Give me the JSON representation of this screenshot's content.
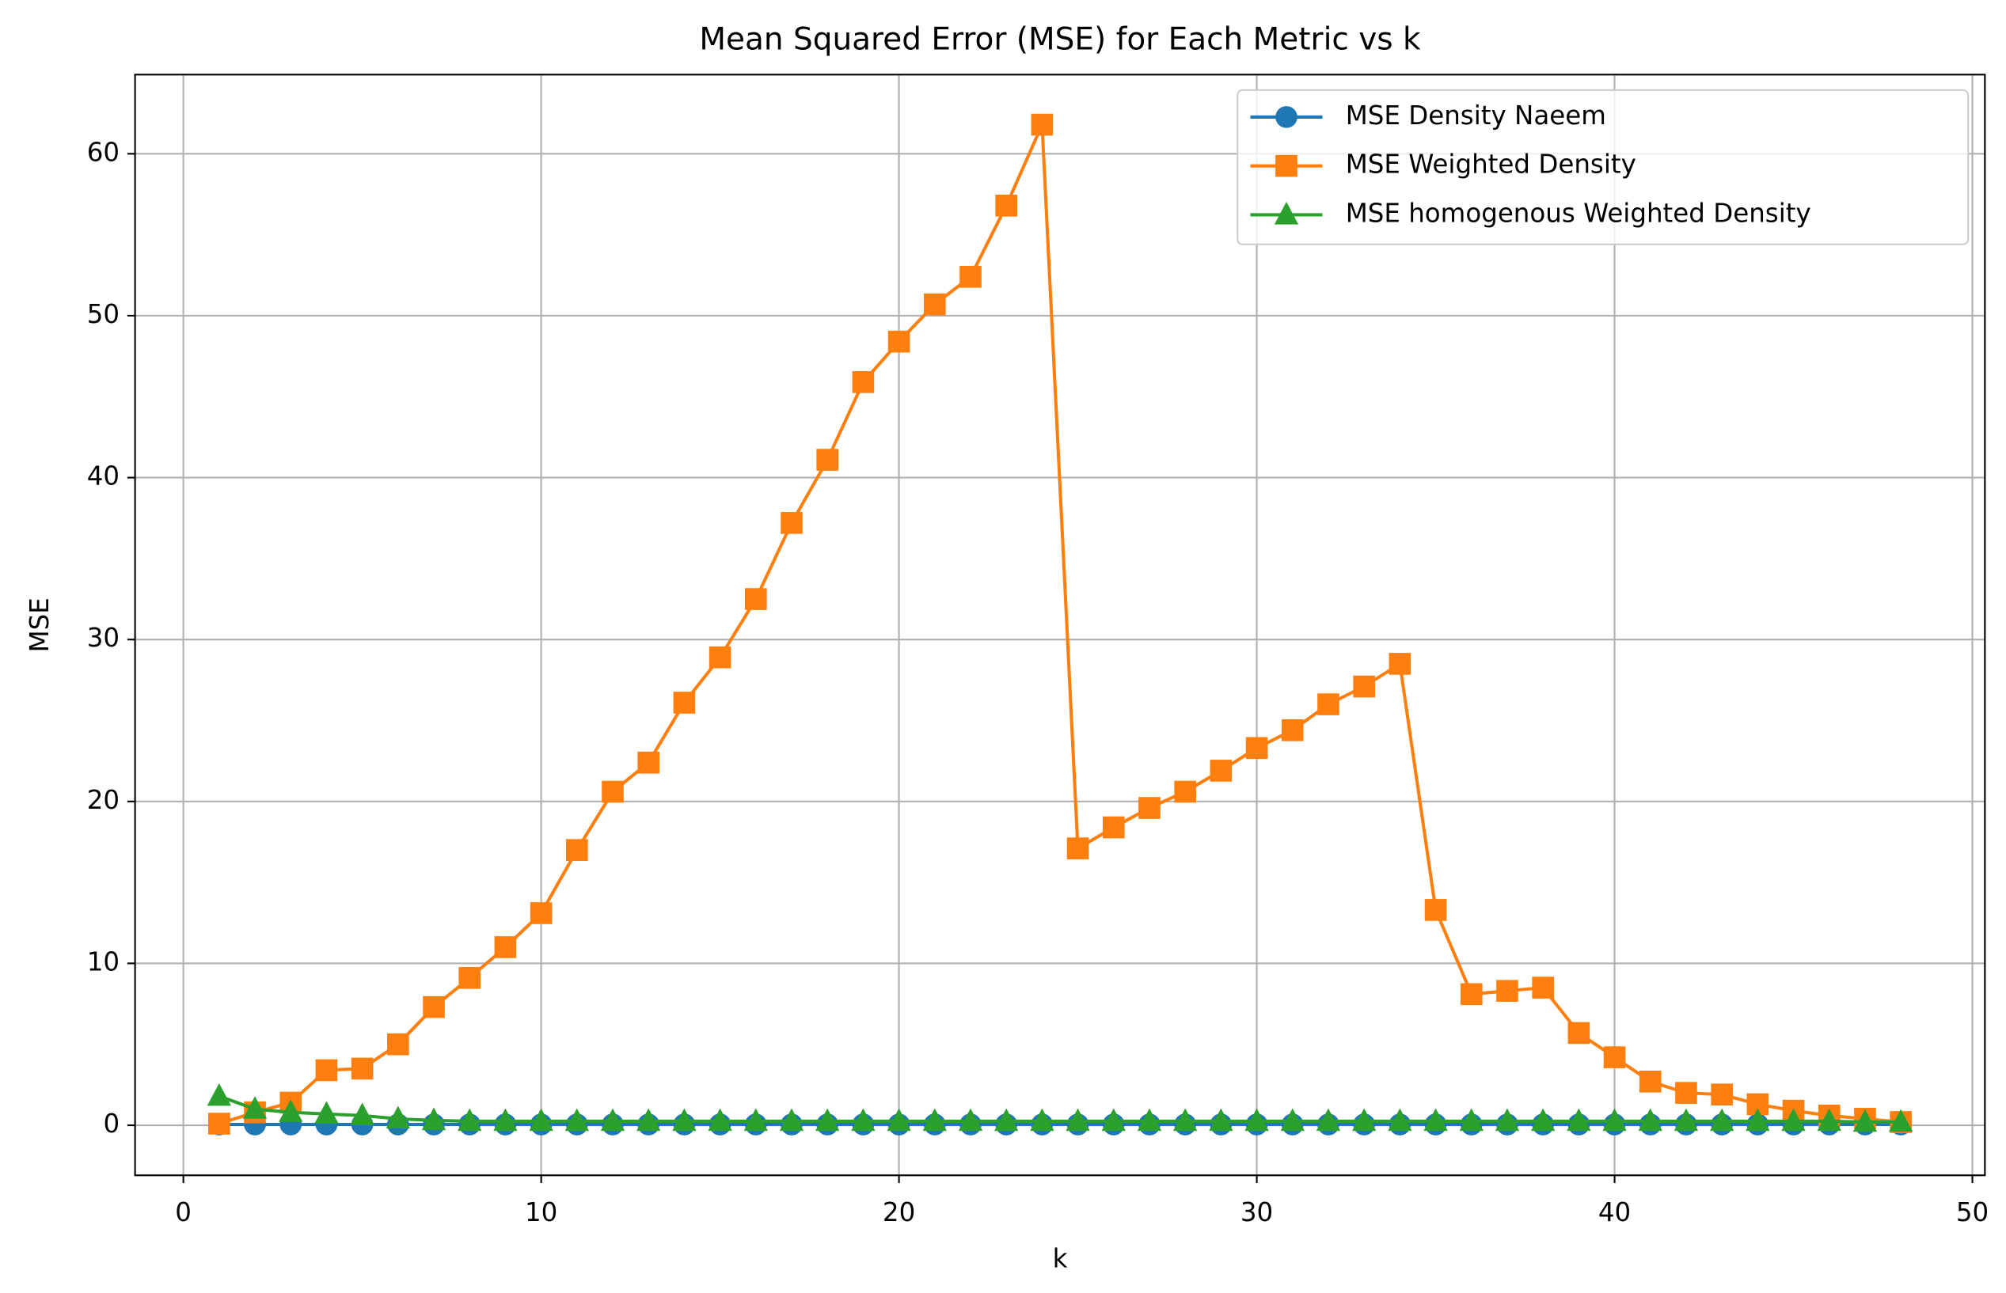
{
  "chart_data": {
    "type": "line",
    "title": "Mean Squared Error (MSE) for Each Metric vs k",
    "xlabel": "k",
    "ylabel": "MSE",
    "x": [
      1,
      2,
      3,
      4,
      5,
      6,
      7,
      8,
      9,
      10,
      11,
      12,
      13,
      14,
      15,
      16,
      17,
      18,
      19,
      20,
      21,
      22,
      23,
      24,
      25,
      26,
      27,
      28,
      29,
      30,
      31,
      32,
      33,
      34,
      35,
      36,
      37,
      38,
      39,
      40,
      41,
      42,
      43,
      44,
      45,
      46,
      47,
      48
    ],
    "series": [
      {
        "name": "MSE Density Naeem",
        "color": "#1f77b4",
        "marker": "circle",
        "values": [
          0.05,
          0.05,
          0.05,
          0.05,
          0.05,
          0.05,
          0.05,
          0.05,
          0.05,
          0.05,
          0.05,
          0.05,
          0.05,
          0.05,
          0.05,
          0.05,
          0.05,
          0.05,
          0.05,
          0.05,
          0.05,
          0.05,
          0.05,
          0.05,
          0.05,
          0.05,
          0.05,
          0.05,
          0.05,
          0.05,
          0.05,
          0.05,
          0.05,
          0.05,
          0.05,
          0.05,
          0.05,
          0.05,
          0.05,
          0.05,
          0.05,
          0.05,
          0.05,
          0.05,
          0.05,
          0.05,
          0.05,
          0.05
        ]
      },
      {
        "name": "MSE Weighted Density",
        "color": "#ff7f0e",
        "marker": "square",
        "values": [
          0.1,
          0.8,
          1.4,
          3.4,
          3.5,
          5.0,
          7.3,
          9.1,
          11.0,
          13.1,
          17.0,
          20.6,
          22.4,
          26.1,
          28.9,
          32.5,
          37.2,
          41.1,
          45.9,
          48.4,
          50.7,
          52.4,
          56.8,
          61.8,
          17.1,
          18.4,
          19.6,
          20.6,
          21.9,
          23.3,
          24.4,
          26.0,
          27.1,
          28.5,
          13.3,
          8.1,
          8.3,
          8.5,
          5.7,
          4.2,
          2.7,
          2.0,
          1.9,
          1.3,
          0.9,
          0.6,
          0.4,
          0.2
        ]
      },
      {
        "name": "MSE homogenous Weighted Density",
        "color": "#2ca02c",
        "marker": "triangle",
        "values": [
          1.8,
          1.0,
          0.8,
          0.7,
          0.6,
          0.4,
          0.3,
          0.25,
          0.25,
          0.25,
          0.25,
          0.25,
          0.25,
          0.25,
          0.25,
          0.25,
          0.25,
          0.25,
          0.25,
          0.25,
          0.25,
          0.25,
          0.25,
          0.25,
          0.25,
          0.25,
          0.25,
          0.25,
          0.25,
          0.25,
          0.25,
          0.25,
          0.25,
          0.25,
          0.25,
          0.25,
          0.25,
          0.25,
          0.25,
          0.25,
          0.25,
          0.25,
          0.25,
          0.25,
          0.25,
          0.25,
          0.2,
          0.2
        ]
      }
    ],
    "xlim": [
      -1.35,
      50.35
    ],
    "xticks": [
      0,
      10,
      20,
      30,
      40,
      50
    ],
    "ylim": [
      -3.09,
      64.89
    ],
    "yticks": [
      0,
      10,
      20,
      30,
      40,
      50,
      60
    ],
    "grid": true,
    "legend": "upper right"
  }
}
